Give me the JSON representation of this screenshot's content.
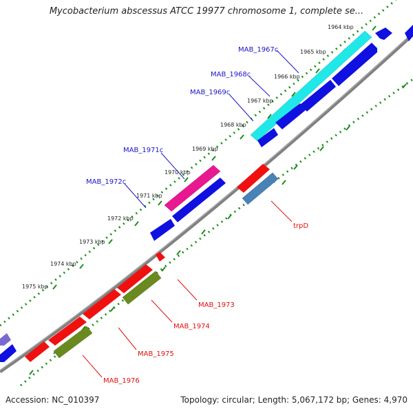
{
  "title": "Mycobacterium abscessus ATCC 19977 chromosome 1, complete se...",
  "footer": {
    "accession": "Accession: NC_010397",
    "summary": "Topology: circular; Length: 5,067,172 bp; Genes: 4,970"
  },
  "ticks": [
    {
      "label": "1964 kbp"
    },
    {
      "label": "1965 kbp"
    },
    {
      "label": "1966 kbp"
    },
    {
      "label": "1967 kbp"
    },
    {
      "label": "1968 kbp"
    },
    {
      "label": "1969 kbp"
    },
    {
      "label": "1970 kbp"
    },
    {
      "label": "1971 kbp"
    },
    {
      "label": "1972 kbp"
    },
    {
      "label": "1973 kbp"
    },
    {
      "label": "1974 kbp"
    },
    {
      "label": "1975 kbp"
    }
  ],
  "genes": [
    {
      "label": "MAB_1967c",
      "strand": "minus"
    },
    {
      "label": "MAB_1968c",
      "strand": "minus"
    },
    {
      "label": "MAB_1969c",
      "strand": "minus"
    },
    {
      "label": "MAB_1971c",
      "strand": "minus"
    },
    {
      "label": "MAB_1972c",
      "strand": "minus"
    },
    {
      "label": "trpD",
      "strand": "plus"
    },
    {
      "label": "MAB_1973",
      "strand": "plus"
    },
    {
      "label": "MAB_1974",
      "strand": "plus"
    },
    {
      "label": "MAB_1975",
      "strand": "plus"
    },
    {
      "label": "MAB_1976",
      "strand": "plus"
    }
  ],
  "colors": {
    "backbone": "#808080",
    "tick": "#1a8a1a",
    "minus_gene": "#1010e0",
    "plus_gene": "#f01010",
    "cds_cyan": "#20e8e8",
    "cds_magenta": "#e81890",
    "cds_steelblue": "#4a82b8",
    "cds_olive": "#6a8a20",
    "cds_purple": "#7a6ad0"
  }
}
